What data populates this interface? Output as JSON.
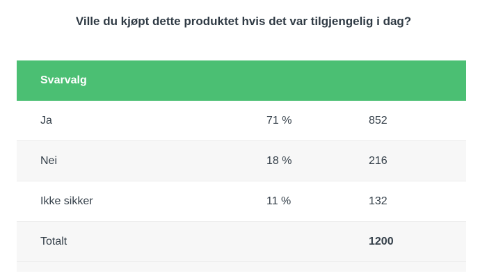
{
  "title": "Ville du kjøpt dette produktet hvis det var tilgjengelig i dag?",
  "table": {
    "header": "Svarvalg",
    "rows": [
      {
        "label": "Ja",
        "percent": "71 %",
        "count": "852"
      },
      {
        "label": "Nei",
        "percent": "18 %",
        "count": "216"
      },
      {
        "label": "Ikke sikker",
        "percent": "11 %",
        "count": "132"
      }
    ],
    "total": {
      "label": "Totalt",
      "count": "1200"
    }
  },
  "colors": {
    "header_bg": "#4bbf73",
    "stripe_bg": "#f7f7f7",
    "text": "#333e48"
  }
}
